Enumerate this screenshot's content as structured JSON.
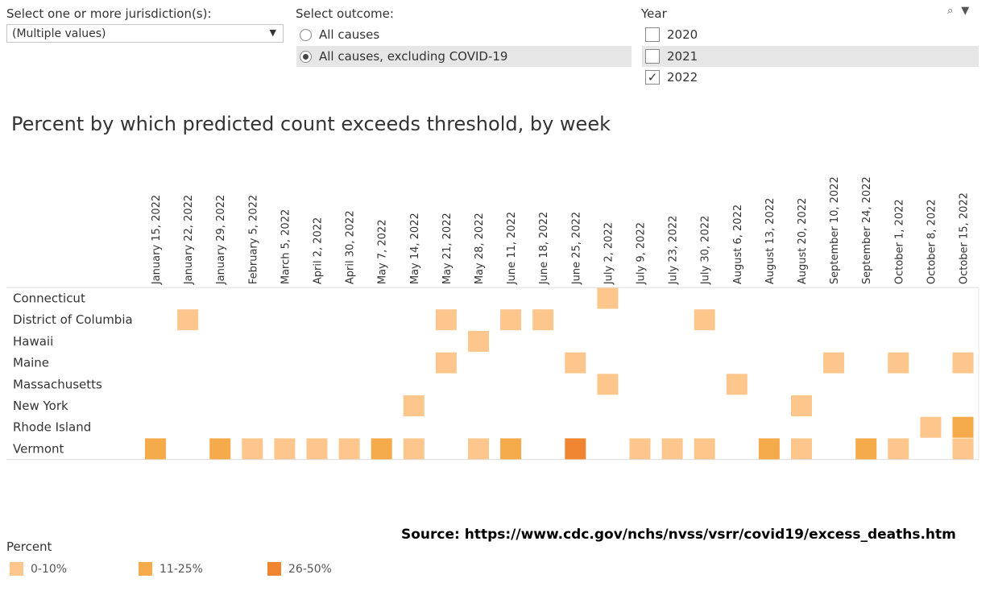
{
  "filters": {
    "jurisdiction_label": "Select one or more jurisdiction(s):",
    "jurisdiction_value": "(Multiple values)",
    "outcome_label": "Select outcome:",
    "outcome_options": [
      "All causes",
      "All causes, excluding COVID-19"
    ],
    "outcome_selected": 1,
    "year_label": "Year",
    "year_options": [
      "2020",
      "2021",
      "2022"
    ],
    "year_checked": [
      false,
      false,
      true
    ],
    "check_mark": "✓"
  },
  "toolbar": {
    "search_icon": "⌕",
    "menu_icon": "▼"
  },
  "source_text": "Source: https://www.cdc.gov/nchs/nvss/vsrr/covid19/excess_deaths.htm",
  "legend": {
    "title": "Percent",
    "items": [
      {
        "label": "0-10%",
        "color": "#fdc68c"
      },
      {
        "label": "11-25%",
        "color": "#f5aa4b"
      },
      {
        "label": "26-50%",
        "color": "#ef8530"
      }
    ]
  },
  "chart_data": {
    "type": "heatmap",
    "title": "Percent by which predicted count exceeds threshold, by week",
    "weeks": [
      "January 15, 2022",
      "January 22, 2022",
      "January 29, 2022",
      "February 5, 2022",
      "March 5, 2022",
      "April 2, 2022",
      "April 30, 2022",
      "May 7, 2022",
      "May 14, 2022",
      "May 21, 2022",
      "May 28, 2022",
      "June 11, 2022",
      "June 18, 2022",
      "June 25, 2022",
      "July 2, 2022",
      "July 9, 2022",
      "July 23, 2022",
      "July 30, 2022",
      "August 6, 2022",
      "August 13, 2022",
      "August 20, 2022",
      "September 10, 2022",
      "September 24, 2022",
      "October 1, 2022",
      "October 8, 2022",
      "October 15, 2022"
    ],
    "jurisdictions": [
      "Connecticut",
      "District of Columbia",
      "Hawaii",
      "Maine",
      "Massachusetts",
      "New York",
      "Rhode Island",
      "Vermont"
    ],
    "categories": [
      "0-10%",
      "11-25%",
      "26-50%"
    ],
    "cells": [
      {
        "jurisdiction": "Connecticut",
        "week": "July 2, 2022",
        "category": "0-10%"
      },
      {
        "jurisdiction": "District of Columbia",
        "week": "January 22, 2022",
        "category": "0-10%"
      },
      {
        "jurisdiction": "District of Columbia",
        "week": "May 21, 2022",
        "category": "0-10%"
      },
      {
        "jurisdiction": "District of Columbia",
        "week": "June 11, 2022",
        "category": "0-10%"
      },
      {
        "jurisdiction": "District of Columbia",
        "week": "June 18, 2022",
        "category": "0-10%"
      },
      {
        "jurisdiction": "District of Columbia",
        "week": "July 30, 2022",
        "category": "0-10%"
      },
      {
        "jurisdiction": "Hawaii",
        "week": "May 28, 2022",
        "category": "0-10%"
      },
      {
        "jurisdiction": "Maine",
        "week": "May 21, 2022",
        "category": "0-10%"
      },
      {
        "jurisdiction": "Maine",
        "week": "June 25, 2022",
        "category": "0-10%"
      },
      {
        "jurisdiction": "Maine",
        "week": "September 10, 2022",
        "category": "0-10%"
      },
      {
        "jurisdiction": "Maine",
        "week": "October 1, 2022",
        "category": "0-10%"
      },
      {
        "jurisdiction": "Maine",
        "week": "October 15, 2022",
        "category": "0-10%"
      },
      {
        "jurisdiction": "Massachusetts",
        "week": "July 2, 2022",
        "category": "0-10%"
      },
      {
        "jurisdiction": "Massachusetts",
        "week": "August 6, 2022",
        "category": "0-10%"
      },
      {
        "jurisdiction": "New York",
        "week": "May 14, 2022",
        "category": "0-10%"
      },
      {
        "jurisdiction": "New York",
        "week": "August 20, 2022",
        "category": "0-10%"
      },
      {
        "jurisdiction": "Rhode Island",
        "week": "October 8, 2022",
        "category": "0-10%"
      },
      {
        "jurisdiction": "Rhode Island",
        "week": "October 15, 2022",
        "category": "11-25%"
      },
      {
        "jurisdiction": "Vermont",
        "week": "January 15, 2022",
        "category": "11-25%"
      },
      {
        "jurisdiction": "Vermont",
        "week": "January 29, 2022",
        "category": "11-25%"
      },
      {
        "jurisdiction": "Vermont",
        "week": "February 5, 2022",
        "category": "0-10%"
      },
      {
        "jurisdiction": "Vermont",
        "week": "March 5, 2022",
        "category": "0-10%"
      },
      {
        "jurisdiction": "Vermont",
        "week": "April 2, 2022",
        "category": "0-10%"
      },
      {
        "jurisdiction": "Vermont",
        "week": "April 30, 2022",
        "category": "0-10%"
      },
      {
        "jurisdiction": "Vermont",
        "week": "May 7, 2022",
        "category": "11-25%"
      },
      {
        "jurisdiction": "Vermont",
        "week": "May 14, 2022",
        "category": "0-10%"
      },
      {
        "jurisdiction": "Vermont",
        "week": "May 28, 2022",
        "category": "0-10%"
      },
      {
        "jurisdiction": "Vermont",
        "week": "June 11, 2022",
        "category": "11-25%"
      },
      {
        "jurisdiction": "Vermont",
        "week": "June 25, 2022",
        "category": "26-50%"
      },
      {
        "jurisdiction": "Vermont",
        "week": "July 9, 2022",
        "category": "0-10%"
      },
      {
        "jurisdiction": "Vermont",
        "week": "July 23, 2022",
        "category": "0-10%"
      },
      {
        "jurisdiction": "Vermont",
        "week": "July 30, 2022",
        "category": "0-10%"
      },
      {
        "jurisdiction": "Vermont",
        "week": "August 13, 2022",
        "category": "11-25%"
      },
      {
        "jurisdiction": "Vermont",
        "week": "August 20, 2022",
        "category": "0-10%"
      },
      {
        "jurisdiction": "Vermont",
        "week": "September 24, 2022",
        "category": "11-25%"
      },
      {
        "jurisdiction": "Vermont",
        "week": "October 1, 2022",
        "category": "0-10%"
      },
      {
        "jurisdiction": "Vermont",
        "week": "October 15, 2022",
        "category": "0-10%"
      }
    ]
  }
}
